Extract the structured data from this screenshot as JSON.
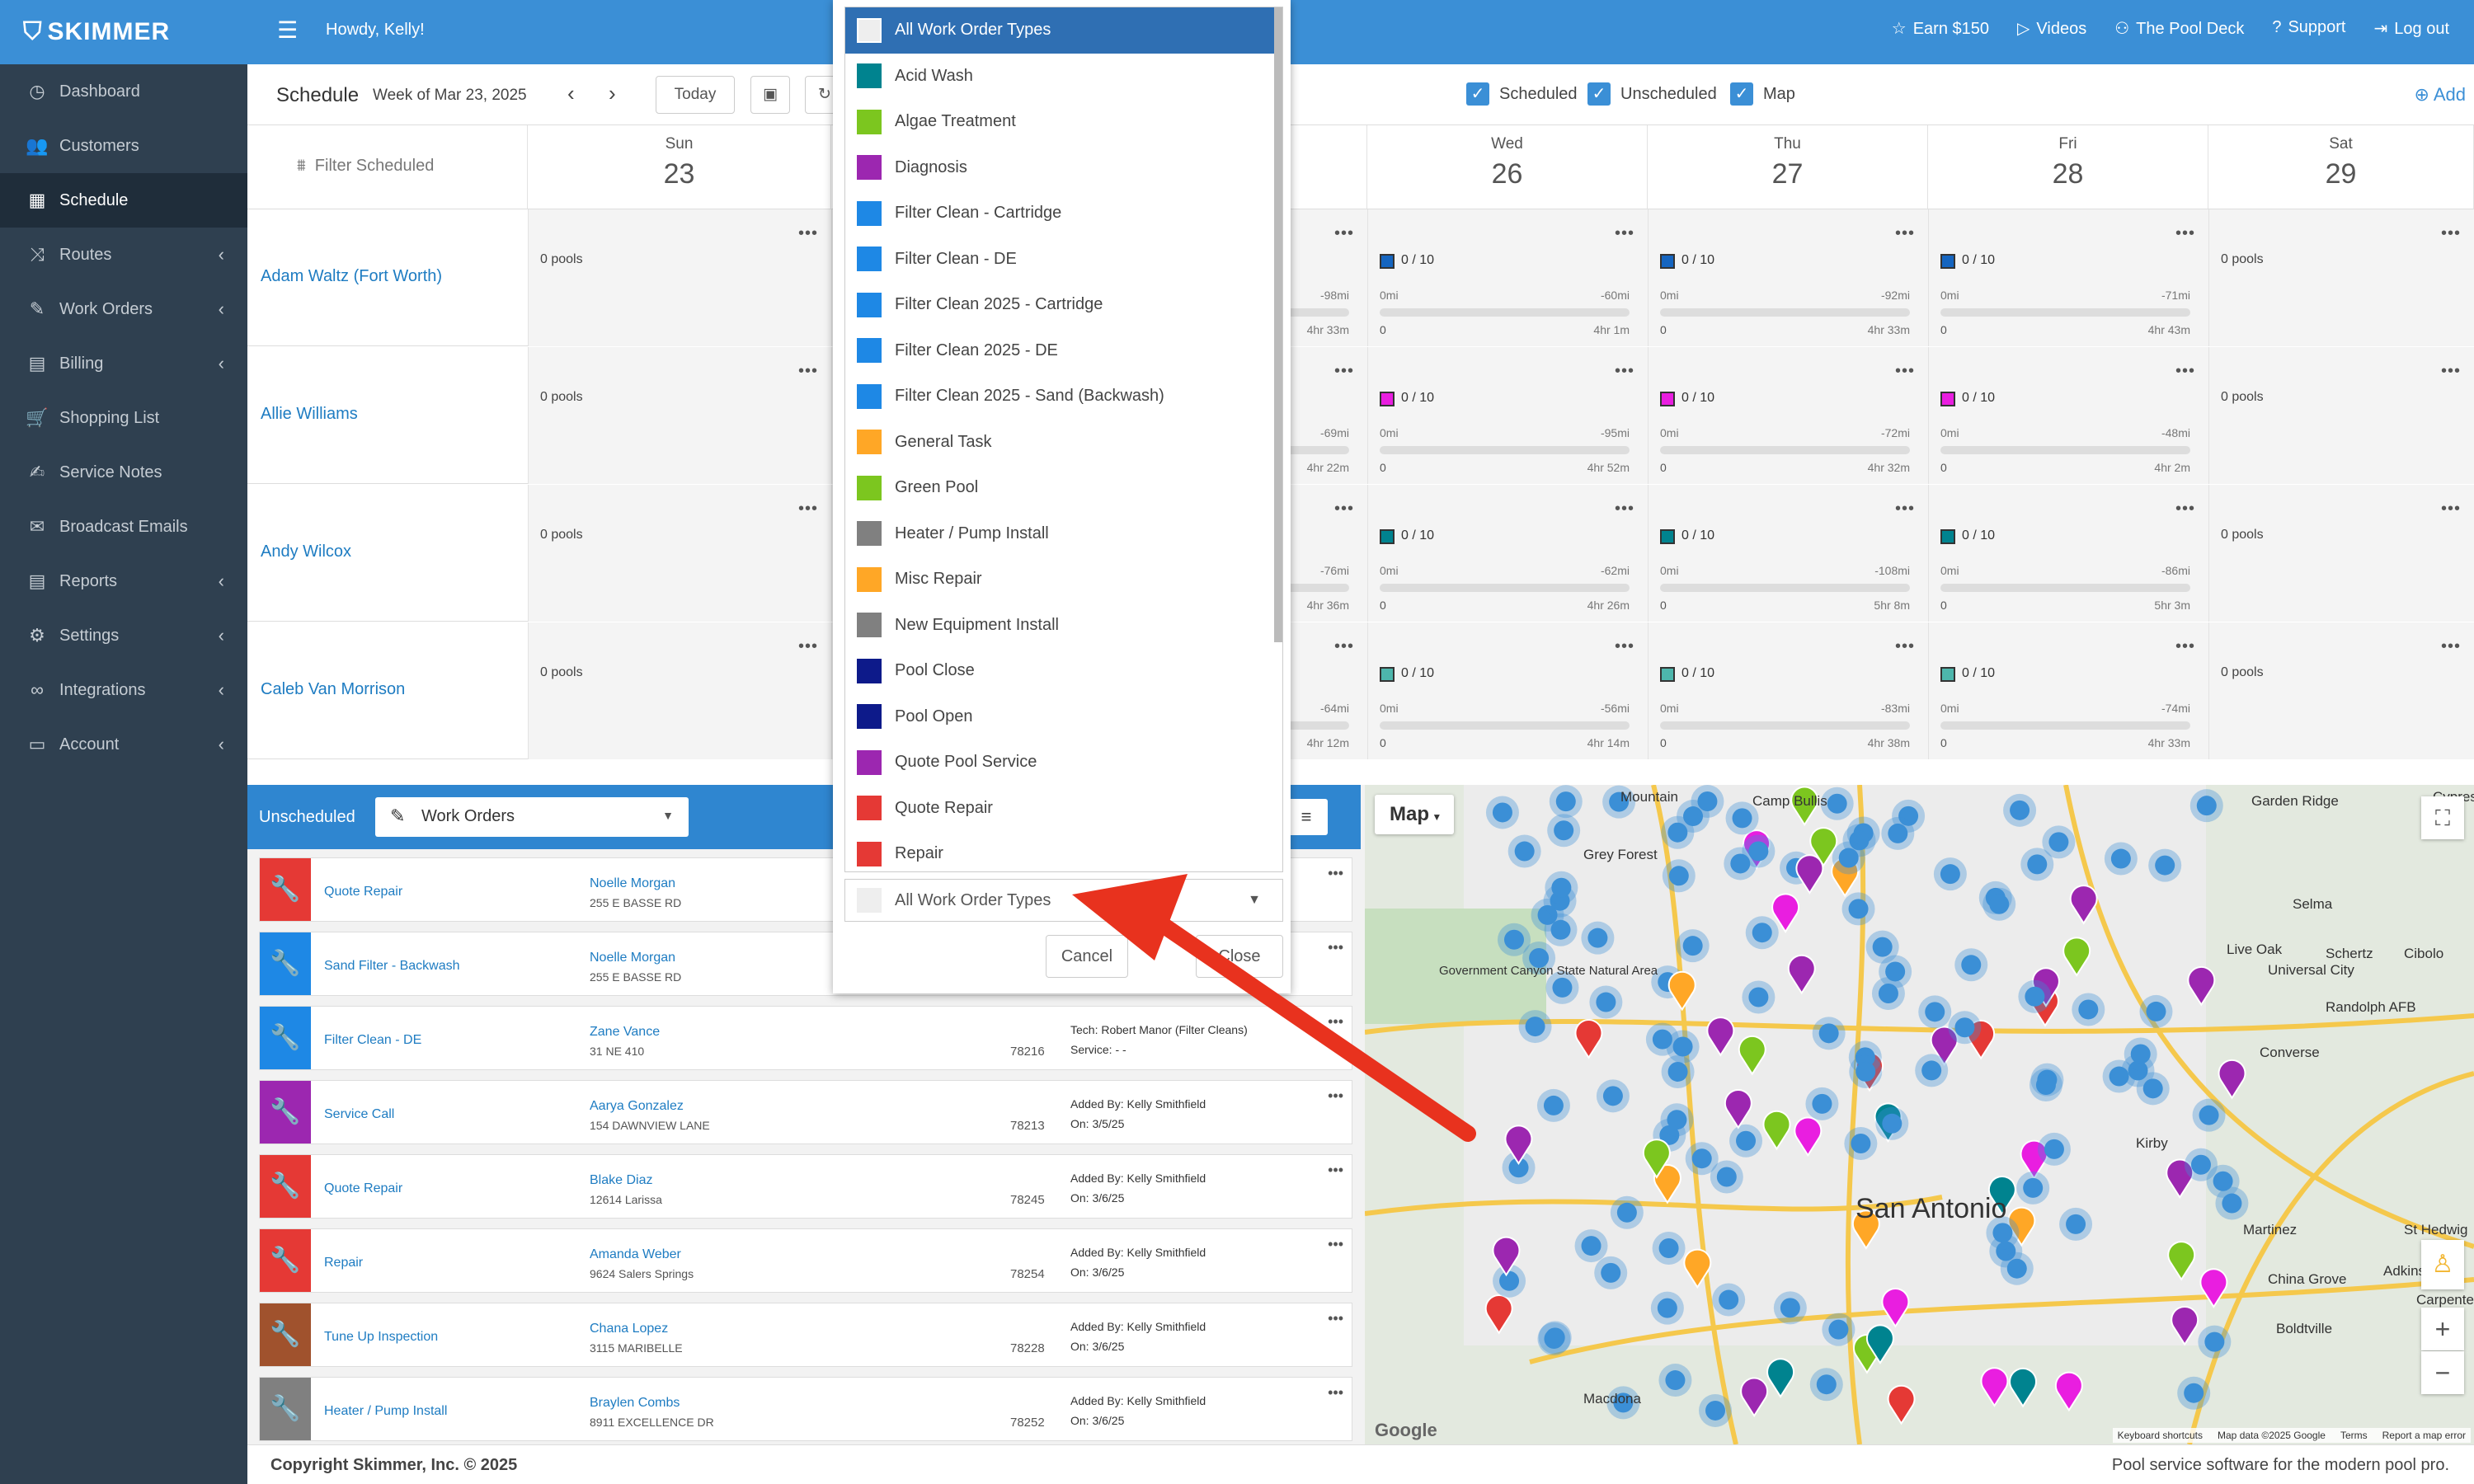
{
  "app": {
    "logo": "SKIMMER",
    "greeting": "Howdy, Kelly!"
  },
  "sidebar": [
    {
      "label": "Dashboard",
      "icon": "dashboard-icon",
      "glyph": "◷",
      "chev": false
    },
    {
      "label": "Customers",
      "icon": "users-icon",
      "glyph": "👥",
      "chev": false
    },
    {
      "label": "Schedule",
      "icon": "calendar-icon",
      "glyph": "▦",
      "chev": false,
      "active": true
    },
    {
      "label": "Routes",
      "icon": "route-icon",
      "glyph": "⤨",
      "chev": true
    },
    {
      "label": "Work Orders",
      "icon": "wrench-icon",
      "glyph": "✎",
      "chev": true
    },
    {
      "label": "Billing",
      "icon": "billing-icon",
      "glyph": "▤",
      "chev": true
    },
    {
      "label": "Shopping List",
      "icon": "cart-icon",
      "glyph": "🛒",
      "chev": false
    },
    {
      "label": "Service Notes",
      "icon": "notes-icon",
      "glyph": "✍",
      "chev": false
    },
    {
      "label": "Broadcast Emails",
      "icon": "email-icon",
      "glyph": "✉",
      "chev": false
    },
    {
      "label": "Reports",
      "icon": "reports-icon",
      "glyph": "▤",
      "chev": true
    },
    {
      "label": "Settings",
      "icon": "gear-icon",
      "glyph": "⚙",
      "chev": true
    },
    {
      "label": "Integrations",
      "icon": "link-icon",
      "glyph": "∞",
      "chev": true
    },
    {
      "label": "Account",
      "icon": "account-icon",
      "glyph": "▭",
      "chev": true
    }
  ],
  "toplinks": [
    {
      "label": "Earn $150",
      "icon": "star-icon",
      "glyph": "☆"
    },
    {
      "label": "Videos",
      "icon": "play-icon",
      "glyph": "▷"
    },
    {
      "label": "The Pool Deck",
      "icon": "people-icon",
      "glyph": "⚇"
    },
    {
      "label": "Support",
      "icon": "help-icon",
      "glyph": "?"
    },
    {
      "label": "Log out",
      "icon": "logout-icon",
      "glyph": "⇥"
    }
  ],
  "schedule": {
    "title": "Schedule",
    "week": "Week of Mar 23, 2025",
    "today": "Today",
    "filter": "Filter Scheduled",
    "checks": [
      "Scheduled",
      "Unscheduled",
      "Map"
    ],
    "add": "Add",
    "days": [
      {
        "name": "Sun",
        "num": "23"
      },
      {
        "name": "Wed",
        "num": "26"
      },
      {
        "name": "Thu",
        "num": "27"
      },
      {
        "name": "Fri",
        "num": "28"
      },
      {
        "name": "Sat",
        "num": "29"
      }
    ]
  },
  "technicians": [
    {
      "name": "Adam Waltz (Fort Worth)",
      "color": "#1565c0",
      "cells": [
        {
          "mi": "-98mi",
          "hr": "4hr 33m",
          "partial": true
        },
        {
          "mi": "-60mi",
          "hr": "4hr 1m"
        },
        {
          "mi": "-92mi",
          "hr": "4hr 33m"
        },
        {
          "mi": "-71mi",
          "hr": "4hr 43m"
        }
      ]
    },
    {
      "name": "Allie Williams",
      "color": "#e91ee0",
      "cells": [
        {
          "mi": "-69mi",
          "hr": "4hr 22m",
          "partial": true
        },
        {
          "mi": "-95mi",
          "hr": "4hr 52m"
        },
        {
          "mi": "-72mi",
          "hr": "4hr 32m"
        },
        {
          "mi": "-48mi",
          "hr": "4hr 2m"
        }
      ]
    },
    {
      "name": "Andy Wilcox",
      "color": "#00838f",
      "cells": [
        {
          "mi": "-76mi",
          "hr": "4hr 36m",
          "partial": true
        },
        {
          "mi": "-62mi",
          "hr": "4hr 26m"
        },
        {
          "mi": "-108mi",
          "hr": "5hr 8m"
        },
        {
          "mi": "-86mi",
          "hr": "5hr 3m"
        }
      ]
    },
    {
      "name": "Caleb Van Morrison",
      "color": "#4db6ac",
      "cells": [
        {
          "mi": "-64mi",
          "hr": "4hr 12m",
          "partial": true
        },
        {
          "mi": "-56mi",
          "hr": "4hr 14m"
        },
        {
          "mi": "-83mi",
          "hr": "4hr 38m"
        },
        {
          "mi": "-74mi",
          "hr": "4hr 33m"
        }
      ]
    }
  ],
  "cell_text": {
    "pools": "0 pools",
    "count": "0 / 10",
    "zero_mi": "0mi",
    "zero": "0",
    "dots": "•••"
  },
  "unscheduled": {
    "label": "Unscheduled",
    "select": "Work Orders",
    "orders": [
      {
        "type": "Quote Repair",
        "color": "#e53935",
        "name": "Noelle Morgan",
        "addr": "255 E BASSE RD",
        "zip": "",
        "info1": "",
        "info2": ""
      },
      {
        "type": "Sand Filter - Backwash",
        "color": "#1e88e5",
        "name": "Noelle Morgan",
        "addr": "255 E BASSE RD",
        "zip": "",
        "info1": "",
        "info2": ""
      },
      {
        "type": "Filter Clean - DE",
        "color": "#1e88e5",
        "name": "Zane Vance",
        "addr": "31 NE 410",
        "zip": "78216",
        "info1": "Tech: Robert Manor (Filter Cleans)",
        "info2": "Service: - -"
      },
      {
        "type": "Service Call",
        "color": "#9c27b0",
        "name": "Aarya Gonzalez",
        "addr": "154 DAWNVIEW LANE",
        "zip": "78213",
        "info1": "Added By: Kelly Smithfield",
        "info2": "On: 3/5/25"
      },
      {
        "type": "Quote Repair",
        "color": "#e53935",
        "name": "Blake Diaz",
        "addr": "12614 Larissa",
        "zip": "78245",
        "info1": "Added By: Kelly Smithfield",
        "info2": "On: 3/6/25"
      },
      {
        "type": "Repair",
        "color": "#e53935",
        "name": "Amanda Weber",
        "addr": "9624 Salers Springs",
        "zip": "78254",
        "info1": "Added By: Kelly Smithfield",
        "info2": "On: 3/6/25"
      },
      {
        "type": "Tune Up Inspection",
        "color": "#a0522d",
        "name": "Chana Lopez",
        "addr": "3115 MARIBELLE",
        "zip": "78228",
        "info1": "Added By: Kelly Smithfield",
        "info2": "On: 3/6/25"
      },
      {
        "type": "Heater / Pump Install",
        "color": "#808080",
        "name": "Braylen Combs",
        "addr": "8911 EXCELLENCE DR",
        "zip": "78252",
        "info1": "Added By: Kelly Smithfield",
        "info2": "On: 3/6/25"
      }
    ]
  },
  "map": {
    "button": "Map",
    "city": "San Antonio",
    "places": [
      "Mountain",
      "Grey Forest",
      "Garden Ridge",
      "Selma",
      "Live Oak",
      "Schertz",
      "Cibolo",
      "Universal City",
      "Randolph AFB",
      "Converse",
      "Kirby",
      "Martinez",
      "St Hedwig",
      "Adkins",
      "China Grove",
      "Boldtville",
      "Carpenter",
      "Macdona",
      "Government Canyon State Natural Area",
      "Cypress",
      "Camp Bullis"
    ],
    "credits": [
      "Keyboard shortcuts",
      "Map data ©2025 Google",
      "Terms",
      "Report a map error"
    ],
    "google": "Google"
  },
  "footer": {
    "left": "Copyright Skimmer, Inc. © 2025",
    "right": "Pool service software for the modern pool pro."
  },
  "dropdown": {
    "items": [
      {
        "label": "All Work Order Types",
        "color": "#eeeeee",
        "selected": true
      },
      {
        "label": "Acid Wash",
        "color": "#00838f"
      },
      {
        "label": "Algae Treatment",
        "color": "#7cc61f"
      },
      {
        "label": "Diagnosis",
        "color": "#9c27b0"
      },
      {
        "label": "Filter Clean - Cartridge",
        "color": "#1e88e5"
      },
      {
        "label": "Filter Clean - DE",
        "color": "#1e88e5"
      },
      {
        "label": "Filter Clean 2025 - Cartridge",
        "color": "#1e88e5"
      },
      {
        "label": "Filter Clean 2025 - DE",
        "color": "#1e88e5"
      },
      {
        "label": "Filter Clean 2025 - Sand (Backwash)",
        "color": "#1e88e5"
      },
      {
        "label": "General Task",
        "color": "#ffa726"
      },
      {
        "label": "Green Pool",
        "color": "#7cc61f"
      },
      {
        "label": "Heater / Pump Install",
        "color": "#808080"
      },
      {
        "label": "Misc Repair",
        "color": "#ffa726"
      },
      {
        "label": "New Equipment Install",
        "color": "#808080"
      },
      {
        "label": "Pool Close",
        "color": "#0d1a8a"
      },
      {
        "label": "Pool Open",
        "color": "#0d1a8a"
      },
      {
        "label": "Quote Pool Service",
        "color": "#9c27b0"
      },
      {
        "label": "Quote Repair",
        "color": "#e53935"
      },
      {
        "label": "Repair",
        "color": "#e53935"
      }
    ],
    "select_value": "All Work Order Types",
    "cancel": "Cancel",
    "close": "Close"
  }
}
